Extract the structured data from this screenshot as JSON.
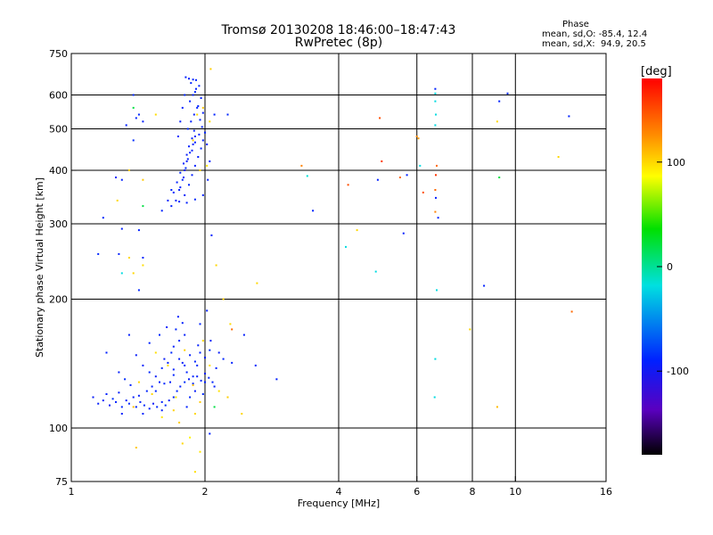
{
  "header": {
    "title_line1": "Tromsø 20130208 18:46:00–18:47:43",
    "title_line2": "RwPretec (8p)"
  },
  "phase_stats": {
    "title": "Phase",
    "o_line": "mean, sd,O: -85.4, 12.4",
    "x_line": "mean, sd,X:  94.9, 20.5"
  },
  "colorbar": {
    "label": "[deg]",
    "min": -180,
    "max": 180,
    "ticks": [
      {
        "value": 100,
        "label": "100"
      },
      {
        "value": 0,
        "label": "0"
      },
      {
        "value": -100,
        "label": "-100"
      }
    ]
  },
  "chart_data": {
    "type": "scatter",
    "xlabel": "Frequency [MHz]",
    "ylabel": "Stationary phase Virtual Height [km]",
    "xscale": "log",
    "yscale": "log",
    "xlim": [
      1,
      16
    ],
    "ylim": [
      75,
      750
    ],
    "xticks": [
      {
        "value": 1,
        "label": "1"
      },
      {
        "value": 2,
        "label": "2"
      },
      {
        "value": 4,
        "label": "4"
      },
      {
        "value": 6,
        "label": "6"
      },
      {
        "value": 8,
        "label": "8"
      },
      {
        "value": 10,
        "label": "10"
      },
      {
        "value": 16,
        "label": "16"
      }
    ],
    "yticks": [
      {
        "value": 75,
        "label": "75"
      },
      {
        "value": 100,
        "label": "100"
      },
      {
        "value": 200,
        "label": "200"
      },
      {
        "value": 300,
        "label": "300"
      },
      {
        "value": 400,
        "label": "400"
      },
      {
        "value": 500,
        "label": "500"
      },
      {
        "value": 600,
        "label": "600"
      },
      {
        "value": 750,
        "label": "750"
      }
    ],
    "vgrid": [
      2,
      4,
      6,
      8,
      10
    ],
    "hgrid": [
      100,
      200,
      300,
      400,
      500,
      600
    ],
    "color_scale": "rainbow phase, -180 (black) to 180 (red) deg",
    "points": [
      [
        1.12,
        118,
        -95
      ],
      [
        1.15,
        114,
        -92
      ],
      [
        1.18,
        116,
        -88
      ],
      [
        1.2,
        120,
        -90
      ],
      [
        1.22,
        113,
        -96
      ],
      [
        1.24,
        117,
        -85
      ],
      [
        1.26,
        115,
        -90
      ],
      [
        1.28,
        121,
        -93
      ],
      [
        1.3,
        112,
        -88
      ],
      [
        1.33,
        116,
        -91
      ],
      [
        1.35,
        114,
        -87
      ],
      [
        1.38,
        118,
        -94
      ],
      [
        1.4,
        112,
        -89
      ],
      [
        1.43,
        115,
        -92
      ],
      [
        1.46,
        113,
        -86
      ],
      [
        1.5,
        111,
        -90
      ],
      [
        1.53,
        114,
        -95
      ],
      [
        1.56,
        112,
        -88
      ],
      [
        1.6,
        115,
        -91
      ],
      [
        1.63,
        113,
        -87
      ],
      [
        1.66,
        116,
        -93
      ],
      [
        1.7,
        118,
        -90
      ],
      [
        1.73,
        122,
        -89
      ],
      [
        1.76,
        125,
        -92
      ],
      [
        1.8,
        128,
        -86
      ],
      [
        1.84,
        130,
        -94
      ],
      [
        1.88,
        127,
        -88
      ],
      [
        1.92,
        132,
        -91
      ],
      [
        1.96,
        129,
        -87
      ],
      [
        2.0,
        134,
        -93
      ],
      [
        2.04,
        131,
        -90
      ],
      [
        2.08,
        128,
        -89
      ],
      [
        1.45,
        140,
        -92
      ],
      [
        1.5,
        135,
        -88
      ],
      [
        1.55,
        132,
        -95
      ],
      [
        1.6,
        138,
        -86
      ],
      [
        1.65,
        142,
        -91
      ],
      [
        1.7,
        137,
        -90
      ],
      [
        1.75,
        145,
        -93
      ],
      [
        1.8,
        140,
        -87
      ],
      [
        1.85,
        148,
        -92
      ],
      [
        1.9,
        143,
        -88
      ],
      [
        1.95,
        150,
        -90
      ],
      [
        2.0,
        146,
        -94
      ],
      [
        2.05,
        152,
        -86
      ],
      [
        1.7,
        155,
        -91
      ],
      [
        1.75,
        160,
        -89
      ],
      [
        1.8,
        165,
        -93
      ],
      [
        1.72,
        170,
        -88
      ],
      [
        1.78,
        176,
        -92
      ],
      [
        1.74,
        182,
        -90
      ],
      [
        1.68,
        150,
        -87
      ],
      [
        1.62,
        145,
        -95
      ],
      [
        1.58,
        128,
        -89
      ],
      [
        1.52,
        125,
        -91
      ],
      [
        1.48,
        122,
        -88
      ],
      [
        1.42,
        119,
        -93
      ],
      [
        1.36,
        126,
        -90
      ],
      [
        1.32,
        130,
        -86
      ],
      [
        1.28,
        135,
        -92
      ],
      [
        1.4,
        148,
        -94
      ],
      [
        1.5,
        158,
        -90
      ],
      [
        1.58,
        165,
        -88
      ],
      [
        1.64,
        172,
        -91
      ],
      [
        1.2,
        150,
        -90
      ],
      [
        1.35,
        165,
        -92
      ],
      [
        1.95,
        175,
        -89
      ],
      [
        2.02,
        188,
        -91
      ],
      [
        2.06,
        160,
        -93
      ],
      [
        1.98,
        120,
        -86
      ],
      [
        2.1,
        125,
        -92
      ],
      [
        2.12,
        138,
        -90
      ],
      [
        1.85,
        118,
        -88
      ],
      [
        1.9,
        122,
        -94
      ],
      [
        1.82,
        112,
        -90
      ],
      [
        1.6,
        110,
        -92
      ],
      [
        1.45,
        108,
        -89
      ],
      [
        1.3,
        108,
        -91
      ],
      [
        1.55,
        122,
        -88
      ],
      [
        1.67,
        128,
        -93
      ],
      [
        1.82,
        135,
        -90
      ],
      [
        1.92,
        140,
        -87
      ],
      [
        2.0,
        128,
        -91
      ],
      [
        1.88,
        132,
        -89
      ],
      [
        1.78,
        142,
        -92
      ],
      [
        1.7,
        133,
        -90
      ],
      [
        1.62,
        127,
        -88
      ],
      [
        1.93,
        156,
        -91
      ],
      [
        2.15,
        150,
        -94
      ],
      [
        2.2,
        145,
        -89
      ],
      [
        2.3,
        142,
        -90
      ],
      [
        2.45,
        165,
        -92
      ],
      [
        2.6,
        140,
        -88
      ],
      [
        2.9,
        130,
        -91
      ],
      [
        1.52,
        120,
        100
      ],
      [
        1.72,
        118,
        95
      ],
      [
        1.88,
        126,
        110
      ],
      [
        1.95,
        115,
        105
      ],
      [
        1.65,
        140,
        98
      ],
      [
        1.8,
        152,
        102
      ],
      [
        2.05,
        140,
        97
      ],
      [
        1.38,
        112,
        108
      ],
      [
        1.6,
        106,
        95
      ],
      [
        1.9,
        108,
        100
      ],
      [
        1.75,
        103,
        104
      ],
      [
        2.15,
        122,
        96
      ],
      [
        1.42,
        128,
        101
      ],
      [
        1.98,
        160,
        99
      ],
      [
        2.25,
        118,
        103
      ],
      [
        1.55,
        150,
        97
      ],
      [
        2.1,
        112,
        20
      ],
      [
        1.85,
        95,
        90
      ],
      [
        1.78,
        92,
        100
      ],
      [
        1.95,
        88,
        95
      ],
      [
        1.9,
        79,
        98
      ],
      [
        1.4,
        90,
        105
      ],
      [
        2.05,
        97,
        -90
      ],
      [
        2.42,
        108,
        100
      ],
      [
        1.7,
        110,
        102
      ],
      [
        1.72,
        340,
        -90
      ],
      [
        1.75,
        360,
        -92
      ],
      [
        1.78,
        380,
        -88
      ],
      [
        1.8,
        400,
        -91
      ],
      [
        1.82,
        420,
        -93
      ],
      [
        1.85,
        440,
        -89
      ],
      [
        1.88,
        460,
        -90
      ],
      [
        1.9,
        480,
        -92
      ],
      [
        1.83,
        500,
        -87
      ],
      [
        1.86,
        520,
        -90
      ],
      [
        1.89,
        540,
        -94
      ],
      [
        1.92,
        560,
        -88
      ],
      [
        1.85,
        580,
        -91
      ],
      [
        1.88,
        600,
        -90
      ],
      [
        1.91,
        620,
        -92
      ],
      [
        1.86,
        640,
        -89
      ],
      [
        1.8,
        350,
        -93
      ],
      [
        1.84,
        370,
        -88
      ],
      [
        1.87,
        390,
        -91
      ],
      [
        1.9,
        410,
        -90
      ],
      [
        1.93,
        430,
        -92
      ],
      [
        1.96,
        450,
        -89
      ],
      [
        1.98,
        470,
        -91
      ],
      [
        2.0,
        490,
        -88
      ],
      [
        1.76,
        365,
        -90
      ],
      [
        1.79,
        385,
        -92
      ],
      [
        1.81,
        405,
        -87
      ],
      [
        1.83,
        425,
        -91
      ],
      [
        1.87,
        445,
        -90
      ],
      [
        1.9,
        465,
        -93
      ],
      [
        1.94,
        485,
        -88
      ],
      [
        1.97,
        505,
        -92
      ],
      [
        1.7,
        355,
        -89
      ],
      [
        1.73,
        375,
        -91
      ],
      [
        1.76,
        395,
        -88
      ],
      [
        1.79,
        415,
        -90
      ],
      [
        1.82,
        435,
        -94
      ],
      [
        1.84,
        455,
        -89
      ],
      [
        1.87,
        475,
        -90
      ],
      [
        1.89,
        495,
        -92
      ],
      [
        1.65,
        340,
        -91
      ],
      [
        1.68,
        360,
        -88
      ],
      [
        1.95,
        525,
        -90
      ],
      [
        1.98,
        545,
        -92
      ],
      [
        1.93,
        565,
        -89
      ],
      [
        1.96,
        590,
        -91
      ],
      [
        1.9,
        610,
        -88
      ],
      [
        1.94,
        630,
        -90
      ],
      [
        1.68,
        330,
        -92
      ],
      [
        1.75,
        338,
        -89
      ],
      [
        1.82,
        336,
        -91
      ],
      [
        1.9,
        342,
        -88
      ],
      [
        1.98,
        350,
        -90
      ],
      [
        2.03,
        380,
        -92
      ],
      [
        2.05,
        420,
        -89
      ],
      [
        2.02,
        460,
        -91
      ],
      [
        1.81,
        660,
        -90
      ],
      [
        1.84,
        655,
        -92
      ],
      [
        1.88,
        652,
        -88
      ],
      [
        1.91,
        650,
        -91
      ],
      [
        1.8,
        600,
        -89
      ],
      [
        1.78,
        560,
        -90
      ],
      [
        1.76,
        520,
        -92
      ],
      [
        1.74,
        480,
        -88
      ],
      [
        1.95,
        400,
        100
      ],
      [
        2.02,
        410,
        95
      ],
      [
        1.98,
        560,
        105
      ],
      [
        2.05,
        520,
        98
      ],
      [
        1.88,
        470,
        102
      ],
      [
        1.92,
        540,
        99
      ],
      [
        2.06,
        690,
        103
      ],
      [
        1.38,
        600,
        -88
      ],
      [
        1.4,
        530,
        -90
      ],
      [
        1.45,
        520,
        -92
      ],
      [
        1.38,
        470,
        -86
      ],
      [
        1.33,
        510,
        -90
      ],
      [
        1.42,
        540,
        -88
      ],
      [
        1.26,
        385,
        -92
      ],
      [
        1.3,
        380,
        -90
      ],
      [
        1.18,
        310,
        -88
      ],
      [
        1.3,
        292,
        -91
      ],
      [
        1.42,
        290,
        -90
      ],
      [
        1.28,
        255,
        -92
      ],
      [
        1.45,
        250,
        -89
      ],
      [
        1.42,
        210,
        -88
      ],
      [
        1.35,
        250,
        100
      ],
      [
        1.45,
        240,
        98
      ],
      [
        1.45,
        330,
        20
      ],
      [
        1.6,
        322,
        -90
      ],
      [
        1.35,
        400,
        102
      ],
      [
        1.45,
        380,
        105
      ],
      [
        1.55,
        540,
        98
      ],
      [
        1.38,
        560,
        20
      ],
      [
        1.27,
        340,
        100
      ],
      [
        1.15,
        255,
        -88
      ],
      [
        1.38,
        230,
        100
      ],
      [
        1.3,
        230,
        -20
      ],
      [
        2.1,
        540,
        -90
      ],
      [
        2.25,
        540,
        -88
      ],
      [
        2.07,
        282,
        -90
      ],
      [
        2.12,
        240,
        100
      ],
      [
        2.2,
        200,
        102
      ],
      [
        2.28,
        175,
        99
      ],
      [
        2.62,
        218,
        100
      ],
      [
        2.3,
        170,
        140
      ],
      [
        3.3,
        410,
        130
      ],
      [
        3.4,
        388,
        -15
      ],
      [
        3.5,
        322,
        -90
      ],
      [
        4.15,
        265,
        -20
      ],
      [
        4.2,
        370,
        150
      ],
      [
        4.4,
        290,
        100
      ],
      [
        4.9,
        380,
        -90
      ],
      [
        5.0,
        420,
        160
      ],
      [
        4.95,
        530,
        150
      ],
      [
        4.85,
        232,
        -20
      ],
      [
        5.5,
        385,
        140
      ],
      [
        5.6,
        285,
        -90
      ],
      [
        5.7,
        390,
        -90
      ],
      [
        6.0,
        480,
        130
      ],
      [
        6.05,
        475,
        120
      ],
      [
        6.1,
        410,
        -20
      ],
      [
        6.2,
        355,
        150
      ],
      [
        6.6,
        620,
        -90
      ],
      [
        6.6,
        605,
        -20
      ],
      [
        6.6,
        580,
        -20
      ],
      [
        6.62,
        540,
        -20
      ],
      [
        6.6,
        510,
        -20
      ],
      [
        6.65,
        410,
        140
      ],
      [
        6.62,
        390,
        160
      ],
      [
        6.6,
        360,
        140
      ],
      [
        6.62,
        345,
        -90
      ],
      [
        6.6,
        320,
        130
      ],
      [
        6.65,
        210,
        -20
      ],
      [
        6.6,
        145,
        -20
      ],
      [
        6.58,
        118,
        -20
      ],
      [
        6.7,
        310,
        -90
      ],
      [
        7.9,
        170,
        100
      ],
      [
        8.5,
        215,
        -90
      ],
      [
        9.1,
        520,
        100
      ],
      [
        9.2,
        385,
        20
      ],
      [
        9.2,
        580,
        -90
      ],
      [
        9.6,
        605,
        -90
      ],
      [
        9.1,
        112,
        110
      ],
      [
        12.5,
        430,
        100
      ],
      [
        13.2,
        535,
        -90
      ],
      [
        13.4,
        187,
        140
      ]
    ]
  }
}
